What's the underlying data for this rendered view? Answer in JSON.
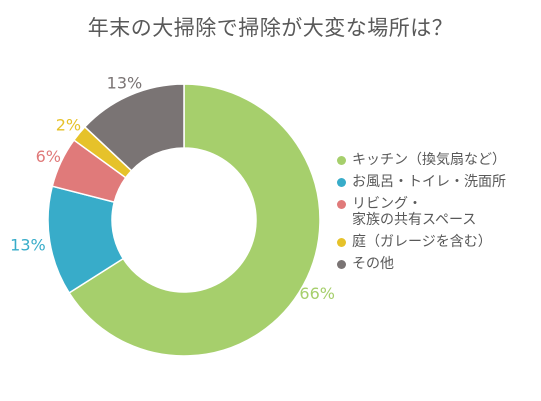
{
  "chart_data": {
    "type": "pie",
    "title": "年末の大掃除で掃除が大変な場所は？",
    "slices": [
      {
        "label": "キッチン（換気扇など）",
        "value": 66,
        "value_label": "66%",
        "color": "#a6cf6c"
      },
      {
        "label": "お風呂・トイレ・洗面所",
        "value": 13,
        "value_label": "13%",
        "color": "#38acc9"
      },
      {
        "label": "リビング・\n家族の共有スペース",
        "value": 6,
        "value_label": "6%",
        "color": "#e07a7a"
      },
      {
        "label": "庭（ガレージを含む）",
        "value": 2,
        "value_label": "2%",
        "color": "#e6c22a"
      },
      {
        "label": "その他",
        "value": 13,
        "value_label": "13%",
        "color": "#7a7474"
      }
    ],
    "style": "donut",
    "legend_position": "right"
  }
}
